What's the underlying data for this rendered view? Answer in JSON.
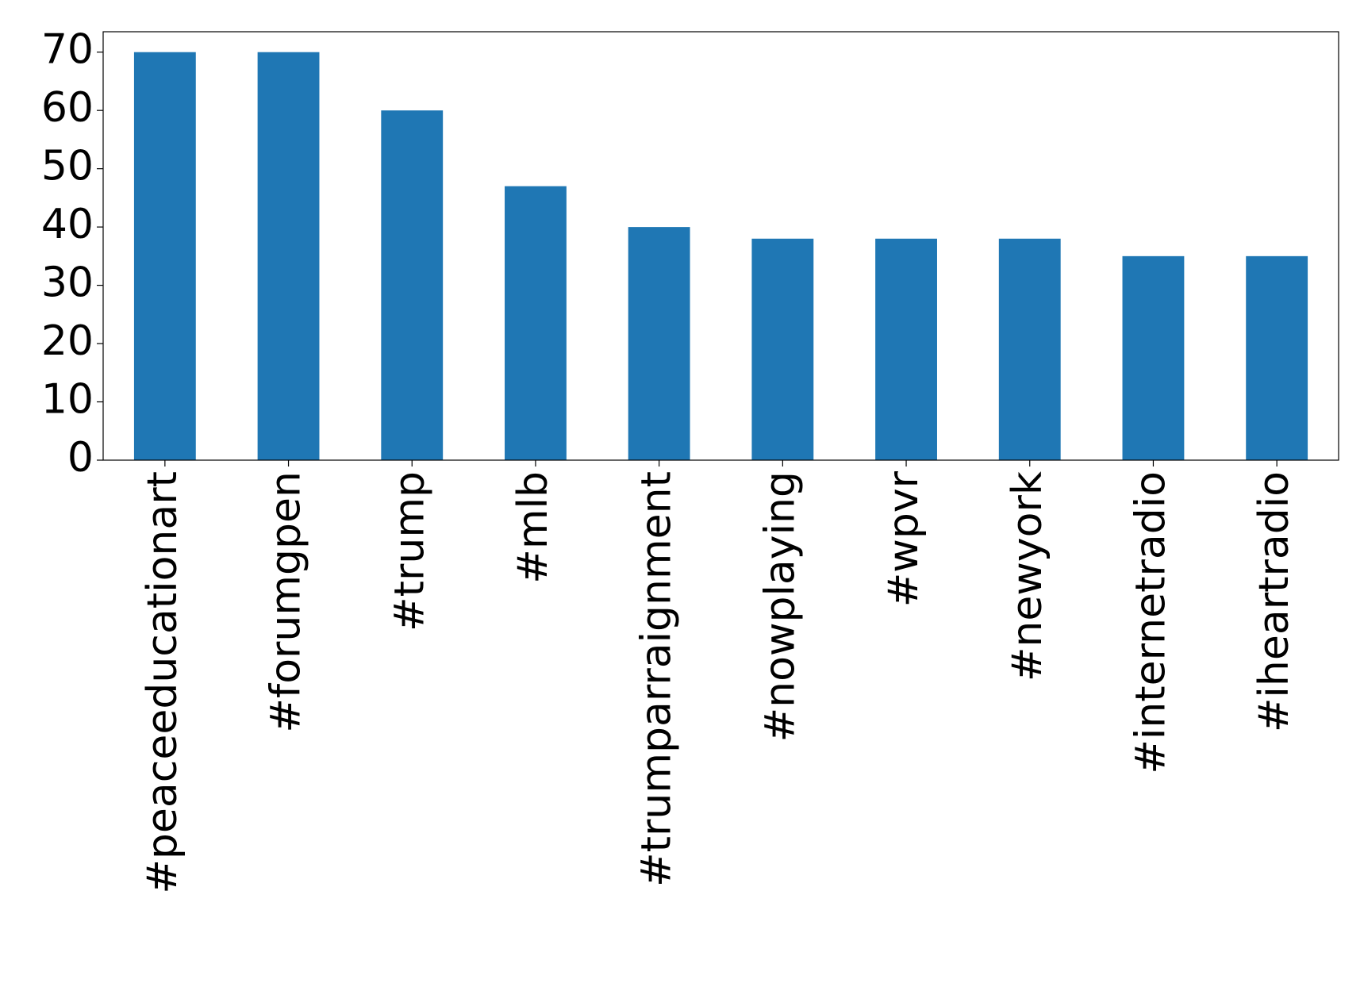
{
  "chart_data": {
    "type": "bar",
    "categories": [
      "#peaceeducationart",
      "#forumgpen",
      "#trump",
      "#mlb",
      "#trumparraignment",
      "#nowplaying",
      "#wpvr",
      "#newyork",
      "#internetradio",
      "#iheartradio"
    ],
    "values": [
      70,
      70,
      60,
      47,
      40,
      38,
      38,
      38,
      35,
      35
    ],
    "color": "#1f77b4",
    "ylim": [
      0,
      73.5
    ],
    "yticks": [
      0,
      10,
      20,
      30,
      40,
      50,
      60,
      70
    ],
    "grid": false
  }
}
